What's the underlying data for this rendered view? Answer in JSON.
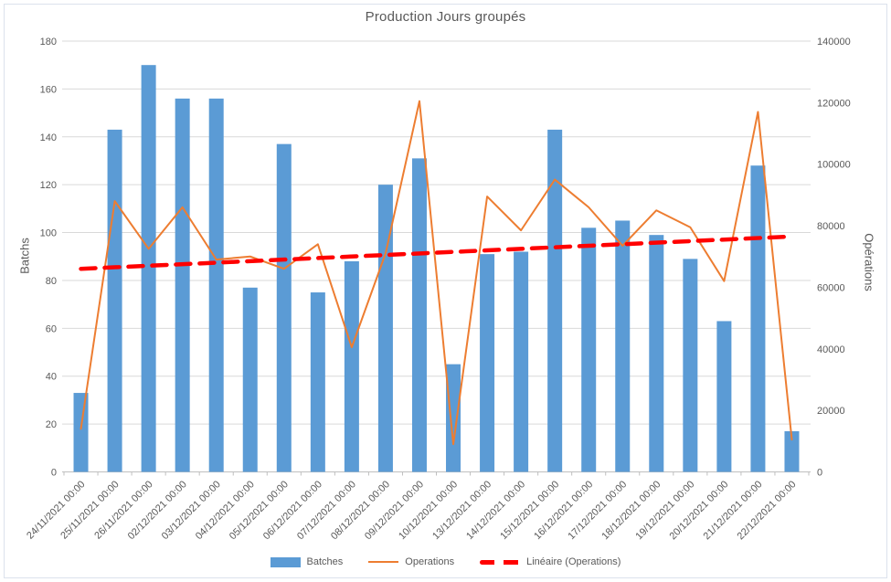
{
  "chart_data": {
    "type": "bar",
    "subtype": "combo-bar-line-trendline",
    "title": "Production Jours groupés",
    "categories": [
      "24/11/2021 00:00",
      "25/11/2021 00:00",
      "26/11/2021 00:00",
      "02/12/2021 00:00",
      "03/12/2021 00:00",
      "04/12/2021 00:00",
      "05/12/2021 00:00",
      "06/12/2021 00:00",
      "07/12/2021 00:00",
      "08/12/2021 00:00",
      "09/12/2021 00:00",
      "10/12/2021 00:00",
      "13/12/2021 00:00",
      "14/12/2021 00:00",
      "15/12/2021 00:00",
      "16/12/2021 00:00",
      "17/12/2021 00:00",
      "18/12/2021 00:00",
      "19/12/2021 00:00",
      "20/12/2021 00:00",
      "21/12/2021 00:00",
      "22/12/2021 00:00"
    ],
    "series": [
      {
        "name": "Batches",
        "type": "bar",
        "axis": "left",
        "color": "#5B9BD5",
        "values": [
          33,
          143,
          170,
          156,
          156,
          77,
          137,
          75,
          88,
          120,
          131,
          45,
          91,
          92,
          143,
          102,
          105,
          99,
          89,
          63,
          128,
          17
        ]
      },
      {
        "name": "Operations",
        "type": "line",
        "axis": "right",
        "color": "#ED7D31",
        "values": [
          14000,
          88000,
          72500,
          86000,
          69000,
          70000,
          66000,
          74000,
          40500,
          71000,
          120500,
          9000,
          89500,
          78500,
          95000,
          86000,
          73500,
          85000,
          79500,
          62000,
          117000,
          10500
        ]
      },
      {
        "name": "Linéaire (Operations)",
        "type": "trendline",
        "axis": "right",
        "color": "#FF0000",
        "line_style": "dashed",
        "values": [
          66000,
          76500
        ]
      }
    ],
    "left_axis": {
      "title": "Batchs",
      "min": 0,
      "max": 180,
      "step": 20
    },
    "right_axis": {
      "title": "Opérations",
      "min": 0,
      "max": 140000,
      "step": 20000
    },
    "legend": {
      "position": "bottom",
      "entries": [
        "Batches",
        "Operations",
        "Linéaire (Operations)"
      ]
    },
    "grid": true,
    "grid_color": "#D9D9D9",
    "axis_line_color": "#BFBFBF",
    "text_color": "#595959"
  }
}
